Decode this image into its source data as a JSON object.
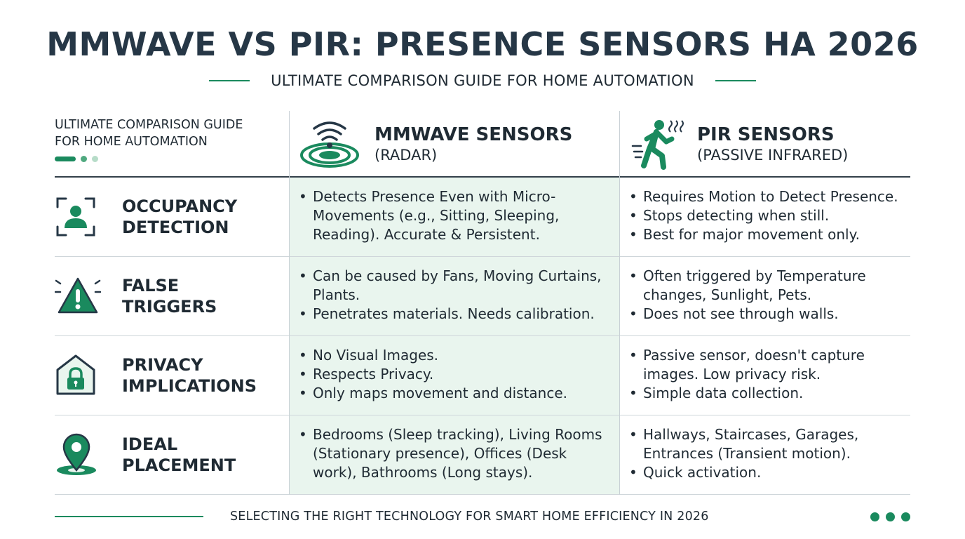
{
  "header": {
    "title": "MMWAVE VS PIR: PRESENCE SENSORS HA 2026",
    "subtitle": "ULTIMATE COMPARISON GUIDE FOR HOME AUTOMATION"
  },
  "table": {
    "corner_label": "ULTIMATE COMPARISON GUIDE\nFOR HOME AUTOMATION",
    "columns": [
      {
        "title": "MMWAVE SENSORS",
        "subtitle": "(RADAR)",
        "icon": "radar-waves-icon"
      },
      {
        "title": "PIR SENSORS",
        "subtitle": "(PASSIVE INFRARED)",
        "icon": "running-person-icon"
      }
    ],
    "rows": [
      {
        "label": "OCCUPANCY\nDETECTION",
        "icon": "occupancy-person-icon",
        "mmwave": [
          "Detects Presence Even with Micro-Movements (e.g., Sitting, Sleeping, Reading).  Accurate & Persistent."
        ],
        "pir": [
          "Requires Motion to Detect Presence.",
          "Stops detecting when still.",
          "Best for major movement only."
        ]
      },
      {
        "label": "FALSE\nTRIGGERS",
        "icon": "warning-triangle-icon",
        "mmwave": [
          "Can be caused by Fans, Moving Curtains, Plants.",
          "Penetrates materials. Needs calibration."
        ],
        "pir": [
          "Often triggered by Temperature changes, Sunlight, Pets.",
          "Does not see through walls."
        ]
      },
      {
        "label": "PRIVACY\nIMPLICATIONS",
        "icon": "house-lock-icon",
        "mmwave": [
          "No Visual Images.",
          "Respects Privacy.",
          "Only maps movement and distance."
        ],
        "pir": [
          "Passive sensor, doesn't capture images. Low privacy risk.",
          "Simple data collection."
        ]
      },
      {
        "label": "IDEAL\nPLACEMENT",
        "icon": "location-pin-icon",
        "mmwave": [
          "Bedrooms (Sleep tracking), Living Rooms (Stationary presence), Offices (Desk work), Bathrooms (Long stays)."
        ],
        "pir": [
          "Hallways, Staircases, Garages, Entrances (Transient motion).",
          "Quick activation."
        ]
      }
    ]
  },
  "footer": {
    "text": "SELECTING THE RIGHT TECHNOLOGY FOR SMART HOME EFFICIENCY IN 2026"
  },
  "colors": {
    "accent": "#1a8a5e",
    "title": "#263746",
    "mmwave_column_bg": "#e9f5ee"
  }
}
